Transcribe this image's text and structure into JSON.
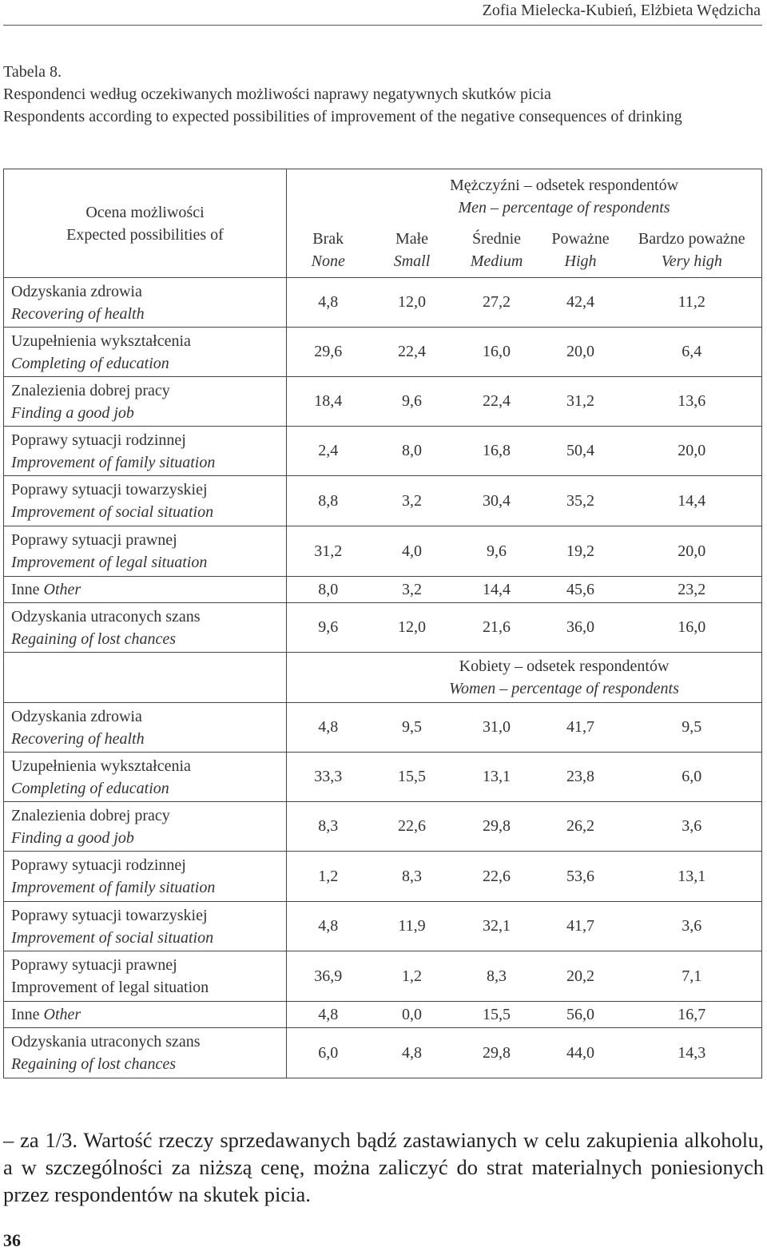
{
  "header": {
    "author": "Zofia Mielecka-Kubień, Elżbieta Wędzicha"
  },
  "caption": {
    "label": "Tabela 8.",
    "title_pl": "Respondenci według oczekiwanych możliwości naprawy negatywnych skutków picia",
    "title_en": "Respondents according to expected possibilities of improvement of the negative consequences of drinking"
  },
  "table": {
    "header_label_pl": "Ocena możliwości",
    "header_label_en": "Expected possibilities of",
    "columns": [
      {
        "pl": "Brak",
        "en": "None"
      },
      {
        "pl": "Małe",
        "en": "Small"
      },
      {
        "pl": "Średnie",
        "en": "Medium"
      },
      {
        "pl": "Poważne",
        "en": "High"
      },
      {
        "pl": "Bardzo poważne",
        "en": "Very high"
      }
    ],
    "men": {
      "title_pl": "Mężczyźni – odsetek respondentów",
      "title_en": "Men – percentage of respondents",
      "rows": [
        {
          "pl": "Odzyskania zdrowia",
          "en": "Recovering of health",
          "values": [
            "4,8",
            "12,0",
            "27,2",
            "42,4",
            "11,2"
          ]
        },
        {
          "pl": "Uzupełnienia wykształcenia",
          "en": "Completing of education",
          "values": [
            "29,6",
            "22,4",
            "16,0",
            "20,0",
            "6,4"
          ]
        },
        {
          "pl": "Znalezienia dobrej pracy",
          "en": "Finding a good job",
          "values": [
            "18,4",
            "9,6",
            "22,4",
            "31,2",
            "13,6"
          ]
        },
        {
          "pl": "Poprawy sytuacji rodzinnej",
          "en": "Improvement of family situation",
          "values": [
            "2,4",
            "8,0",
            "16,8",
            "50,4",
            "20,0"
          ]
        },
        {
          "pl": "Poprawy sytuacji towarzyskiej",
          "en": "Improvement of social situation",
          "values": [
            "8,8",
            "3,2",
            "30,4",
            "35,2",
            "14,4"
          ]
        },
        {
          "pl": "Poprawy sytuacji prawnej",
          "en": "Improvement of legal situation",
          "values": [
            "31,2",
            "4,0",
            "9,6",
            "19,2",
            "20,0"
          ]
        },
        {
          "pl": "Inne",
          "en": "Other",
          "values": [
            "8,0",
            "3,2",
            "14,4",
            "45,6",
            "23,2"
          ]
        },
        {
          "pl": "Odzyskania utraconych szans",
          "en": "Regaining of lost chances",
          "values": [
            "9,6",
            "12,0",
            "21,6",
            "36,0",
            "16,0"
          ]
        }
      ]
    },
    "women": {
      "title_pl": "Kobiety – odsetek respondentów",
      "title_en": "Women – percentage of respondents",
      "rows": [
        {
          "pl": "Odzyskania zdrowia",
          "en": "Recovering of health",
          "values": [
            "4,8",
            "9,5",
            "31,0",
            "41,7",
            "9,5"
          ]
        },
        {
          "pl": "Uzupełnienia wykształcenia",
          "en": "Completing of education",
          "values": [
            "33,3",
            "15,5",
            "13,1",
            "23,8",
            "6,0"
          ]
        },
        {
          "pl": "Znalezienia dobrej pracy",
          "en": "Finding a good job",
          "values": [
            "8,3",
            "22,6",
            "29,8",
            "26,2",
            "3,6"
          ]
        },
        {
          "pl": "Poprawy sytuacji rodzinnej",
          "en": "Improvement of family situation",
          "values": [
            "1,2",
            "8,3",
            "22,6",
            "53,6",
            "13,1"
          ]
        },
        {
          "pl": "Poprawy sytuacji towarzyskiej",
          "en": "Improvement of social situation",
          "values": [
            "4,8",
            "11,9",
            "32,1",
            "41,7",
            "3,6"
          ]
        },
        {
          "pl": "Poprawy sytuacji prawnej",
          "en": "Improvement of legal situation",
          "values": [
            "36,9",
            "1,2",
            "8,3",
            "20,2",
            "7,1"
          ]
        },
        {
          "pl": "Inne",
          "en": "Other",
          "values": [
            "4,8",
            "0,0",
            "15,5",
            "56,0",
            "16,7"
          ]
        },
        {
          "pl": "Odzyskania utraconych szans",
          "en": "Regaining of lost chances",
          "values": [
            "6,0",
            "4,8",
            "29,8",
            "44,0",
            "14,3"
          ]
        }
      ]
    }
  },
  "body_text": "– za 1/3. Wartość rzeczy sprzedawanych bądź zastawianych w celu zakupienia alkoholu, a w szczególności za niższą cenę, można zaliczyć do strat materialnych poniesionych przez respondentów na skutek picia.",
  "page_number": "36"
}
